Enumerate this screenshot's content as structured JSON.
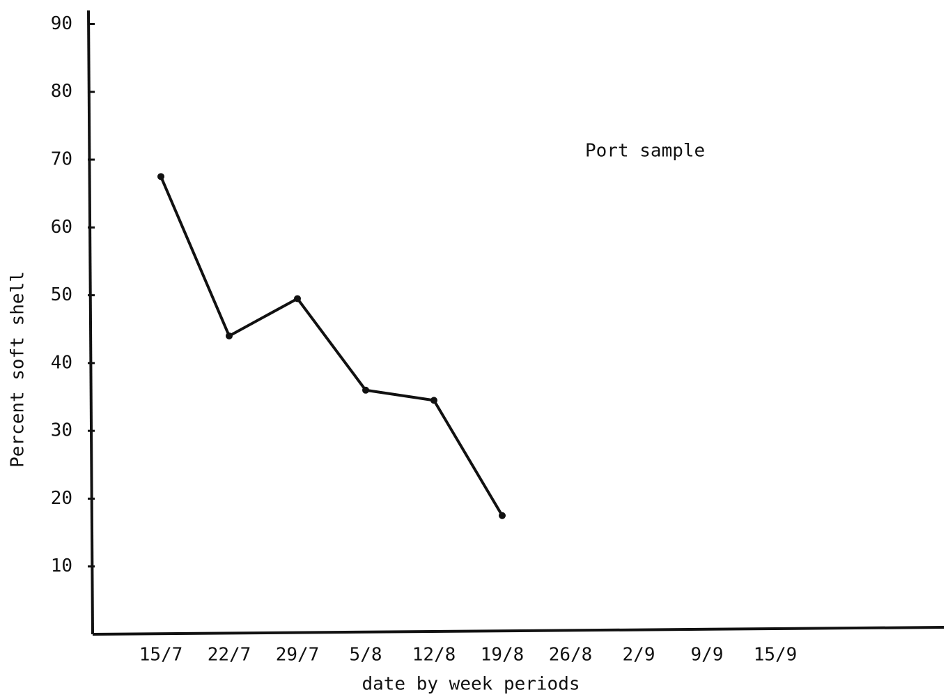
{
  "chart_data": {
    "type": "line",
    "annotation": "Port sample",
    "x_label": "date by week periods",
    "y_label": "Percent soft shell",
    "categories": [
      "15/7",
      "22/7",
      "29/7",
      "5/8",
      "12/8",
      "19/8",
      "26/8",
      "2/9",
      "9/9",
      "15/9"
    ],
    "series": [
      {
        "name": "Port sample",
        "color": "#111111",
        "values": [
          67.5,
          44,
          49.5,
          36,
          34.5,
          17.5,
          null,
          null,
          null,
          null
        ]
      }
    ],
    "ylim": [
      0,
      92
    ],
    "yticks": [
      10,
      20,
      30,
      40,
      50,
      60,
      70,
      80,
      90
    ],
    "grid": false
  }
}
